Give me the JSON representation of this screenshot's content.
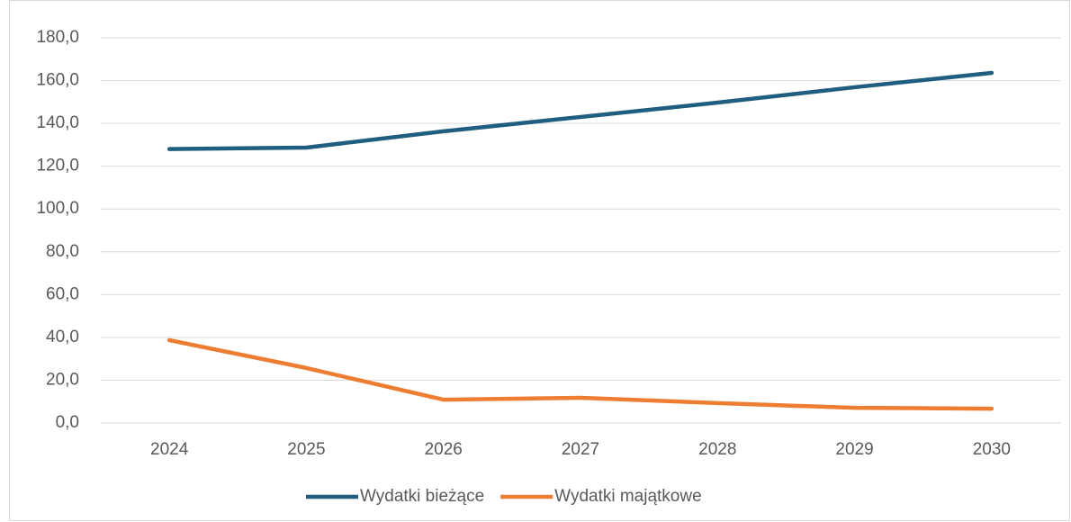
{
  "chart_data": {
    "type": "line",
    "categories": [
      "2024",
      "2025",
      "2026",
      "2027",
      "2028",
      "2029",
      "2030"
    ],
    "series": [
      {
        "name": "Wydatki bieżące",
        "color": "#1f5e7f",
        "values": [
          128.0,
          128.7,
          136.3,
          143.0,
          149.7,
          156.9,
          163.6
        ]
      },
      {
        "name": "Wydatki majątkowe",
        "color": "#ed7d31",
        "values": [
          38.7,
          25.7,
          10.9,
          11.8,
          9.3,
          7.1,
          6.7
        ]
      }
    ],
    "ylim": [
      0,
      180
    ],
    "yticks": [
      {
        "value": 0,
        "label": "0,0"
      },
      {
        "value": 20,
        "label": "20,0"
      },
      {
        "value": 40,
        "label": "40,0"
      },
      {
        "value": 60,
        "label": "60,0"
      },
      {
        "value": 80,
        "label": "80,0"
      },
      {
        "value": 100,
        "label": "100,0"
      },
      {
        "value": 120,
        "label": "120,0"
      },
      {
        "value": 140,
        "label": "140,0"
      },
      {
        "value": 160,
        "label": "160,0"
      },
      {
        "value": 180,
        "label": "180,0"
      }
    ],
    "grid": true,
    "legend": "bottom"
  }
}
